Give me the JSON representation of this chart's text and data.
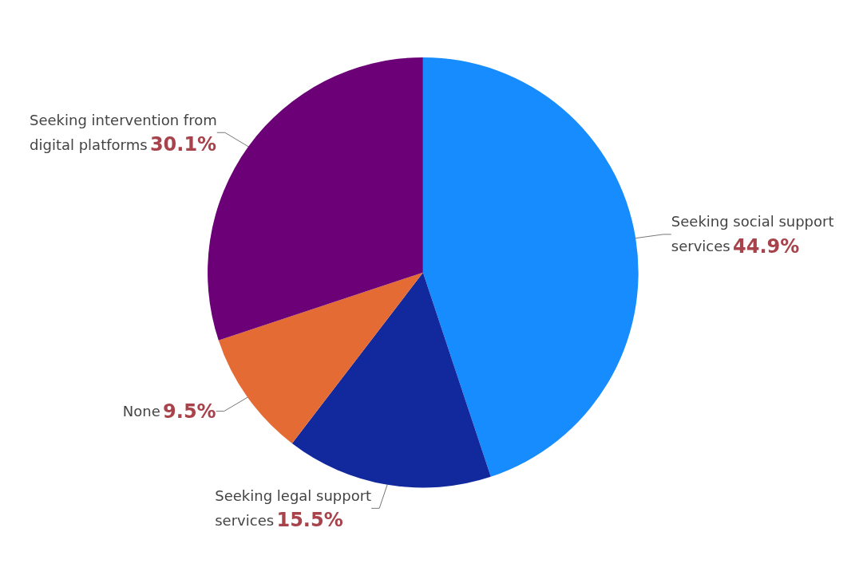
{
  "chart_data": {
    "type": "pie",
    "categories": [
      "Seeking social support services",
      "Seeking legal support services",
      "None",
      "Seeking intervention from digital platforms"
    ],
    "values": [
      44.9,
      15.5,
      9.5,
      30.1
    ],
    "colors": [
      "#168cff",
      "#12299e",
      "#e56b35",
      "#6b0077"
    ],
    "value_labels": [
      "44.9%",
      "15.5%",
      "9.5%",
      "30.1%"
    ],
    "legend": false
  }
}
